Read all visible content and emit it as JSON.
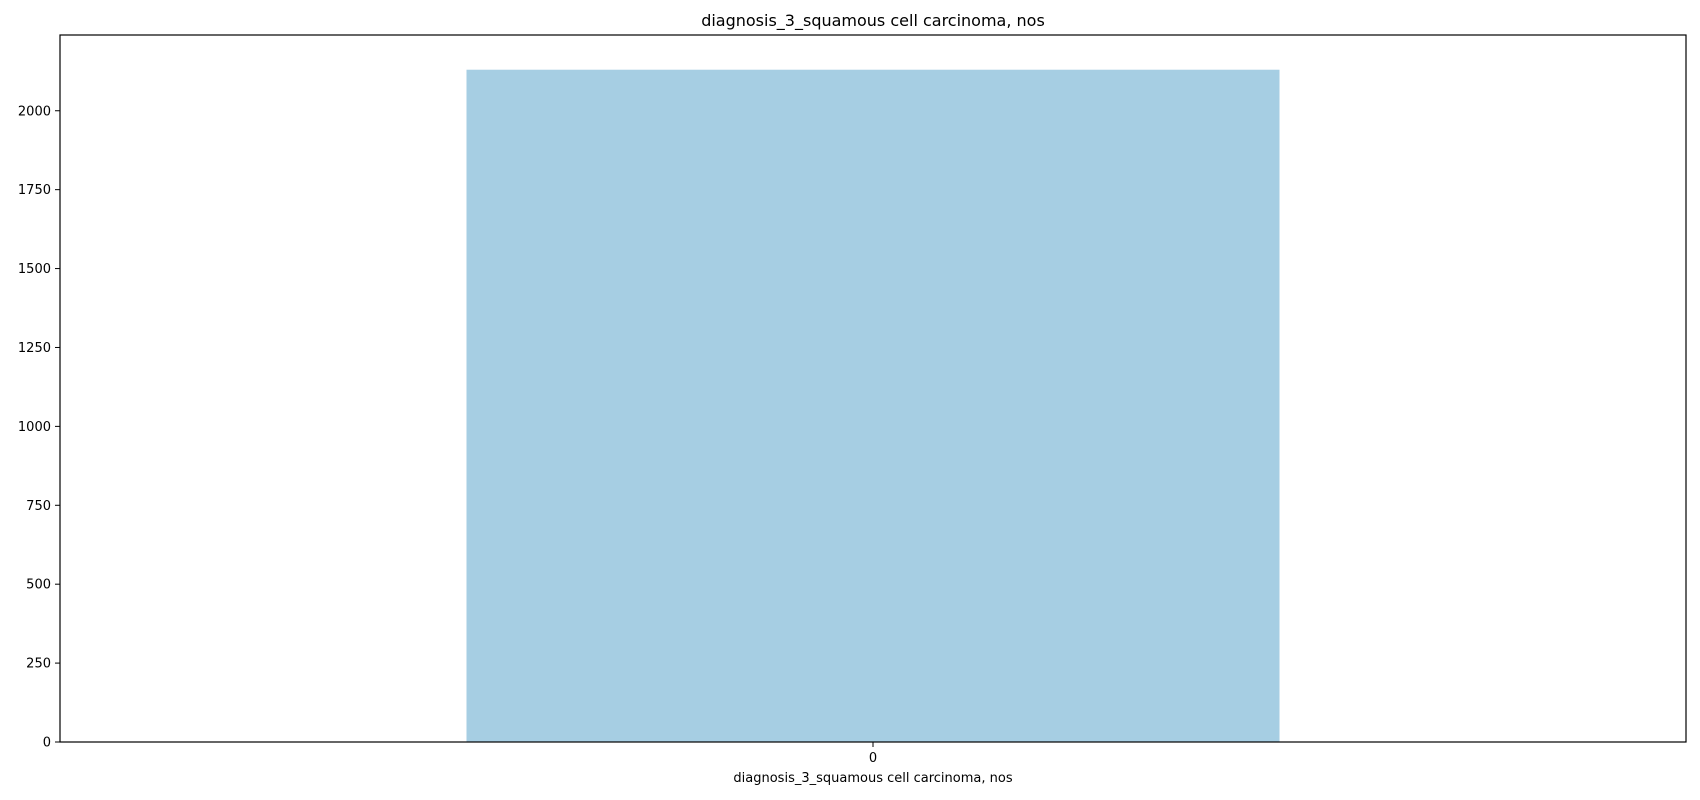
{
  "chart_data": {
    "type": "bar",
    "title": "diagnosis_3_squamous cell carcinoma, nos",
    "xlabel": "diagnosis_3_squamous cell carcinoma, nos",
    "ylabel": "",
    "categories": [
      "0"
    ],
    "values": [
      2130
    ],
    "ylim": [
      0,
      2240
    ],
    "yticks": [
      0,
      250,
      500,
      750,
      1000,
      1250,
      1500,
      1750,
      2000
    ],
    "ytick_labels": [
      "0",
      "250",
      "500",
      "750",
      "1000",
      "1250",
      "1500",
      "1750",
      "2000"
    ],
    "grid": false,
    "legend": "none",
    "bar_color": "#a6cee3"
  }
}
